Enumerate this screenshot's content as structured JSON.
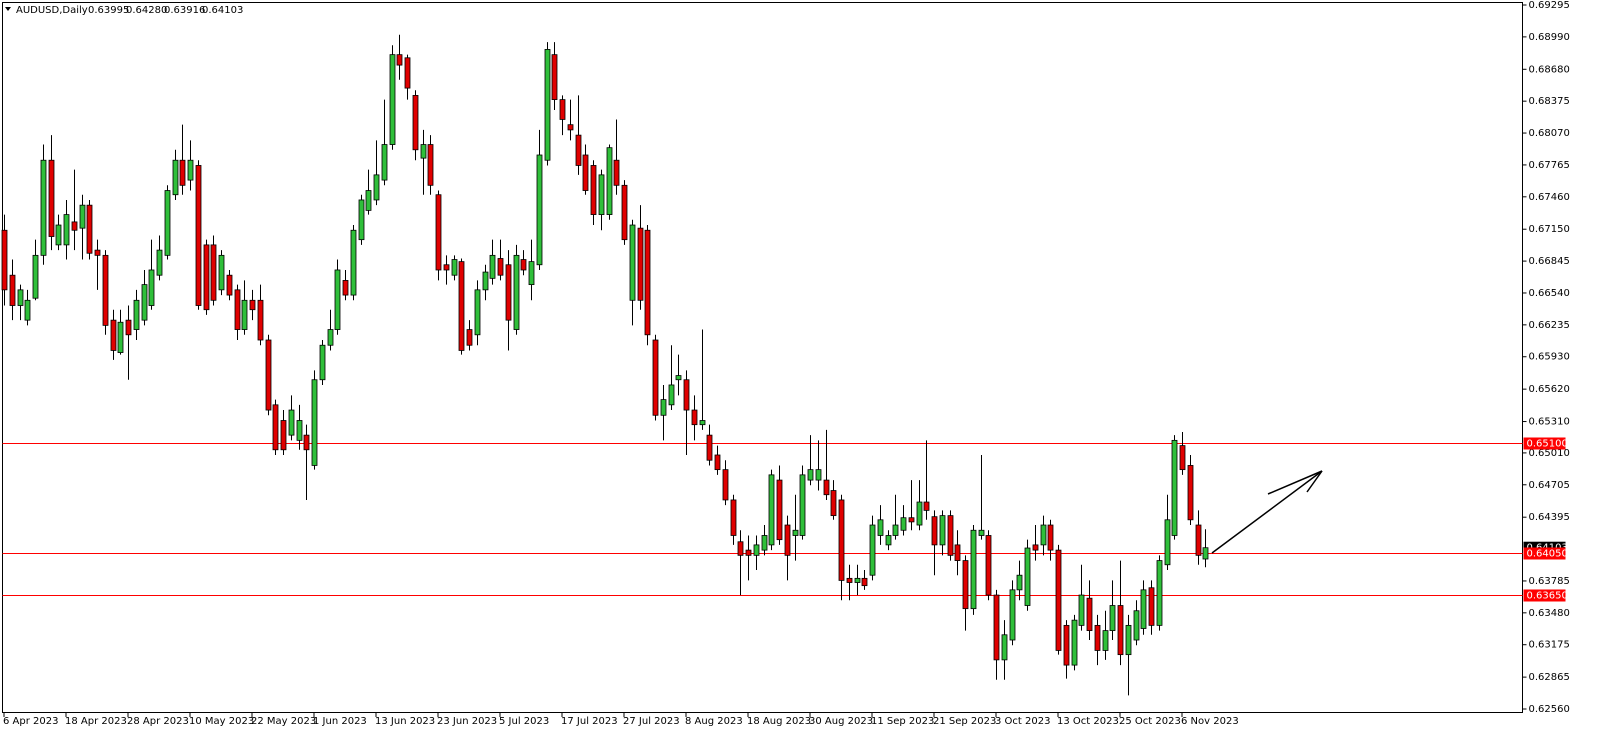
{
  "chart_data": {
    "type": "candlestick",
    "symbol": "AUDUSD,Daily",
    "header_values": [
      "0.63995",
      "0.64280",
      "0.63916",
      "0.64103"
    ],
    "categories": [
      "6 Apr 2023",
      null,
      null,
      null,
      null,
      null,
      null,
      null,
      "18 Apr 2023",
      null,
      null,
      null,
      null,
      null,
      null,
      null,
      "28 Apr 2023",
      null,
      null,
      null,
      null,
      null,
      null,
      null,
      "10 May 2023",
      null,
      null,
      null,
      null,
      null,
      null,
      null,
      "22 May 2023",
      null,
      null,
      null,
      null,
      null,
      null,
      null,
      "1 Jun 2023",
      null,
      null,
      null,
      null,
      null,
      null,
      null,
      "13 Jun 2023",
      null,
      null,
      null,
      null,
      null,
      null,
      null,
      "23 Jun 2023",
      null,
      null,
      null,
      null,
      null,
      null,
      null,
      "5 Jul 2023",
      null,
      null,
      null,
      null,
      null,
      null,
      null,
      "17 Jul 2023",
      null,
      null,
      null,
      null,
      null,
      null,
      null,
      "27 Jul 2023",
      null,
      null,
      null,
      null,
      null,
      null,
      null,
      "8 Aug 2023",
      null,
      null,
      null,
      null,
      null,
      null,
      null,
      "18 Aug 2023",
      null,
      null,
      null,
      null,
      null,
      null,
      null,
      "30 Aug 2023",
      null,
      null,
      null,
      null,
      null,
      null,
      null,
      "11 Sep 2023",
      null,
      null,
      null,
      null,
      null,
      null,
      null,
      "21 Sep 2023",
      null,
      null,
      null,
      null,
      null,
      null,
      null,
      "3 Oct 2023",
      null,
      null,
      null,
      null,
      null,
      null,
      null,
      "13 Oct 2023",
      null,
      null,
      null,
      null,
      null,
      null,
      null,
      "25 Oct 2023",
      null,
      null,
      null,
      null,
      null,
      null,
      null,
      "6 Nov 2023",
      null,
      null,
      null
    ],
    "open": [
      0.6714,
      0.6671,
      0.6642,
      0.6628,
      0.6649,
      0.669,
      0.6781,
      0.67,
      0.67,
      0.6722,
      0.6716,
      0.6738,
      0.6695,
      0.669,
      0.6628,
      0.6597,
      0.6628,
      0.6619,
      0.6628,
      0.6642,
      0.6671,
      0.669,
      0.6748,
      0.6781,
      0.6762,
      0.6776,
      0.67,
      0.67,
      0.6657,
      0.6671,
      0.6657,
      0.6619,
      0.6647,
      0.6647,
      0.6609,
      0.6547,
      0.6532,
      0.6518,
      0.6513,
      0.6518,
      0.6489,
      0.6571,
      0.6604,
      0.6619,
      0.6666,
      0.6652,
      0.6705,
      0.6733,
      0.6743,
      0.6762,
      0.6796,
      0.6882,
      0.6879,
      0.6843,
      0.6783,
      0.6796,
      0.6748,
      0.6681,
      0.6671,
      0.6684,
      0.6619,
      0.6614,
      0.6657,
      0.6668,
      0.6687,
      0.6681,
      0.6619,
      0.6686,
      0.6662,
      0.6681,
      0.6781,
      0.6882,
      0.6839,
      0.6815,
      0.6805,
      0.6786,
      0.6776,
      0.6729,
      0.6729,
      0.6781,
      0.6757,
      0.6647,
      0.6716,
      0.6714,
      0.6609,
      0.6537,
      0.6547,
      0.6571,
      0.6571,
      0.6542,
      0.6528,
      0.6518,
      0.6499,
      0.6485,
      0.6456,
      0.6416,
      0.6408,
      0.6403,
      0.6408,
      0.6413,
      0.6475,
      0.6432,
      0.6422,
      0.6422,
      0.6475,
      0.6475,
      0.6475,
      0.6465,
      0.6456,
      0.6381,
      0.6377,
      0.6381,
      0.6384,
      0.6422,
      0.6413,
      0.6422,
      0.6427,
      0.6439,
      0.6432,
      0.6454,
      0.644,
      0.6413,
      0.6441,
      0.6413,
      0.6398,
      0.6352,
      0.6422,
      0.6422,
      0.6365,
      0.6303,
      0.6322,
      0.637,
      0.6355,
      0.6413,
      0.6413,
      0.6432,
      0.6408,
      0.6336,
      0.6298,
      0.6336,
      0.6362,
      0.6336,
      0.6312,
      0.6331,
      0.6355,
      0.6308,
      0.6322,
      0.6333,
      0.6372,
      0.6336,
      0.6394,
      0.6422,
      0.6508,
      0.6489,
      0.6432,
      0.63995
    ],
    "high": [
      0.6729,
      0.6686,
      0.6662,
      0.6657,
      0.6705,
      0.6796,
      0.6805,
      0.6729,
      0.6743,
      0.6772,
      0.6748,
      0.6743,
      0.6705,
      0.6695,
      0.6638,
      0.6638,
      0.6642,
      0.6657,
      0.6676,
      0.6705,
      0.6709,
      0.6757,
      0.6791,
      0.6815,
      0.68,
      0.6781,
      0.6705,
      0.6709,
      0.6695,
      0.6676,
      0.6662,
      0.6666,
      0.6657,
      0.6662,
      0.6614,
      0.6552,
      0.6542,
      0.6556,
      0.6547,
      0.6528,
      0.658,
      0.6609,
      0.6638,
      0.6686,
      0.6676,
      0.6719,
      0.6748,
      0.6772,
      0.68,
      0.6839,
      0.6891,
      0.6901,
      0.6882,
      0.6848,
      0.681,
      0.6805,
      0.6752,
      0.669,
      0.669,
      0.6687,
      0.6628,
      0.6666,
      0.6681,
      0.6705,
      0.6705,
      0.6695,
      0.67,
      0.6695,
      0.6705,
      0.681,
      0.6894,
      0.6894,
      0.6843,
      0.6839,
      0.6843,
      0.6796,
      0.6781,
      0.6772,
      0.6796,
      0.682,
      0.6762,
      0.6724,
      0.6738,
      0.6719,
      0.6614,
      0.6566,
      0.6604,
      0.6595,
      0.658,
      0.6556,
      0.6619,
      0.6528,
      0.6508,
      0.6494,
      0.6461,
      0.6427,
      0.6422,
      0.6422,
      0.6432,
      0.6485,
      0.6489,
      0.6441,
      0.6461,
      0.6489,
      0.6518,
      0.6513,
      0.6523,
      0.6475,
      0.6461,
      0.6394,
      0.6394,
      0.6389,
      0.6441,
      0.6451,
      0.6427,
      0.6461,
      0.6451,
      0.6475,
      0.6475,
      0.6513,
      0.6446,
      0.6446,
      0.6446,
      0.6427,
      0.6403,
      0.6432,
      0.6499,
      0.6427,
      0.637,
      0.6341,
      0.6379,
      0.6398,
      0.6418,
      0.6432,
      0.6441,
      0.6437,
      0.6413,
      0.6341,
      0.6346,
      0.6394,
      0.6379,
      0.6346,
      0.635,
      0.6379,
      0.6398,
      0.6346,
      0.636,
      0.6379,
      0.6379,
      0.6403,
      0.6461,
      0.6518,
      0.6521,
      0.6499,
      0.6446,
      0.6428
    ],
    "low": [
      0.6642,
      0.6628,
      0.6628,
      0.6623,
      0.6647,
      0.6681,
      0.6695,
      0.6695,
      0.6686,
      0.6695,
      0.6686,
      0.6686,
      0.6657,
      0.6614,
      0.659,
      0.6595,
      0.6571,
      0.6609,
      0.6623,
      0.6638,
      0.6666,
      0.6686,
      0.6743,
      0.6748,
      0.6752,
      0.6638,
      0.6633,
      0.6642,
      0.6652,
      0.6647,
      0.6609,
      0.6614,
      0.6628,
      0.6604,
      0.6537,
      0.6499,
      0.6499,
      0.6513,
      0.6504,
      0.6456,
      0.6485,
      0.6566,
      0.6599,
      0.6614,
      0.6647,
      0.6647,
      0.67,
      0.6729,
      0.6738,
      0.6757,
      0.6791,
      0.6858,
      0.6839,
      0.6781,
      0.6748,
      0.6748,
      0.6666,
      0.6662,
      0.6666,
      0.6595,
      0.6599,
      0.6604,
      0.6647,
      0.6662,
      0.6666,
      0.6599,
      0.6614,
      0.6671,
      0.6647,
      0.6676,
      0.6776,
      0.6829,
      0.6805,
      0.68,
      0.6767,
      0.6748,
      0.6719,
      0.6714,
      0.6724,
      0.6748,
      0.67,
      0.6623,
      0.6638,
      0.6604,
      0.6532,
      0.6513,
      0.6542,
      0.6556,
      0.6499,
      0.6513,
      0.6523,
      0.6489,
      0.648,
      0.6451,
      0.6413,
      0.6365,
      0.6379,
      0.6389,
      0.6403,
      0.6408,
      0.6413,
      0.6379,
      0.6398,
      0.6418,
      0.647,
      0.6465,
      0.6456,
      0.6437,
      0.636,
      0.636,
      0.6365,
      0.637,
      0.6379,
      0.6413,
      0.6408,
      0.6418,
      0.6422,
      0.6427,
      0.6427,
      0.6437,
      0.6384,
      0.6403,
      0.6398,
      0.6384,
      0.6331,
      0.6346,
      0.6418,
      0.636,
      0.6284,
      0.6284,
      0.6317,
      0.636,
      0.635,
      0.6398,
      0.6403,
      0.6398,
      0.6308,
      0.6285,
      0.6293,
      0.6331,
      0.6322,
      0.6298,
      0.6303,
      0.6322,
      0.6298,
      0.6269,
      0.6317,
      0.6327,
      0.6327,
      0.6331,
      0.6389,
      0.6418,
      0.648,
      0.6432,
      0.6394,
      0.63916
    ],
    "close": [
      0.6657,
      0.6642,
      0.6657,
      0.6647,
      0.669,
      0.6781,
      0.6708,
      0.6719,
      0.6729,
      0.6714,
      0.6738,
      0.6692,
      0.669,
      0.6623,
      0.6599,
      0.6626,
      0.6614,
      0.6647,
      0.6662,
      0.6676,
      0.6695,
      0.6752,
      0.6781,
      0.6757,
      0.6781,
      0.6642,
      0.6638,
      0.6647,
      0.669,
      0.6652,
      0.6619,
      0.6647,
      0.6638,
      0.6609,
      0.6542,
      0.6504,
      0.6504,
      0.6542,
      0.6532,
      0.6504,
      0.6571,
      0.6604,
      0.6619,
      0.6676,
      0.6652,
      0.6714,
      0.6743,
      0.6752,
      0.6767,
      0.6796,
      0.6882,
      0.6872,
      0.685,
      0.6791,
      0.6796,
      0.6757,
      0.6676,
      0.6676,
      0.6686,
      0.6599,
      0.6604,
      0.6657,
      0.6674,
      0.669,
      0.6671,
      0.6628,
      0.669,
      0.6676,
      0.6684,
      0.6786,
      0.6887,
      0.6839,
      0.682,
      0.681,
      0.6776,
      0.6752,
      0.6729,
      0.6767,
      0.6793,
      0.6757,
      0.6705,
      0.6719,
      0.6647,
      0.6614,
      0.6537,
      0.6552,
      0.6566,
      0.6575,
      0.6542,
      0.6528,
      0.6532,
      0.6494,
      0.6485,
      0.6456,
      0.6422,
      0.6403,
      0.6403,
      0.6413,
      0.6422,
      0.648,
      0.6418,
      0.6403,
      0.6427,
      0.648,
      0.6485,
      0.6485,
      0.6461,
      0.6441,
      0.6379,
      0.6377,
      0.6381,
      0.6374,
      0.6432,
      0.6437,
      0.6422,
      0.6432,
      0.6439,
      0.6435,
      0.6454,
      0.6446,
      0.6413,
      0.6441,
      0.6403,
      0.6398,
      0.6352,
      0.6427,
      0.6427,
      0.6365,
      0.6303,
      0.6327,
      0.637,
      0.6384,
      0.641,
      0.6408,
      0.6432,
      0.6408,
      0.6312,
      0.6298,
      0.6341,
      0.6365,
      0.6331,
      0.6312,
      0.6331,
      0.6355,
      0.6308,
      0.6336,
      0.635,
      0.637,
      0.6336,
      0.6398,
      0.6437,
      0.6513,
      0.6485,
      0.6437,
      0.6403,
      0.64103
    ],
    "up_color": "#2fbf3a",
    "down_color": "#e00000",
    "ylim": [
      0.6256,
      0.69295
    ],
    "yticks": [
      0.69295,
      {
        "value": 0.6899,
        "label": "0.68990"
      },
      {
        "value": 0.6868,
        "label": "0.68680"
      },
      0.68375,
      {
        "value": 0.6807,
        "label": "0.68070"
      },
      0.67765,
      {
        "value": 0.6746,
        "label": "0.67460"
      },
      {
        "value": 0.6715,
        "label": "0.67150"
      },
      0.66845,
      {
        "value": 0.6654,
        "label": "0.66540"
      },
      0.66235,
      {
        "value": 0.6593,
        "label": "0.65930"
      },
      {
        "value": 0.6562,
        "label": "0.65620"
      },
      {
        "value": 0.6531,
        "label": "0.65310"
      },
      {
        "value": 0.6501,
        "label": "0.65010"
      },
      0.64705,
      0.64395,
      0.63785,
      {
        "value": 0.6348,
        "label": "0.63480"
      },
      0.63175,
      0.62865,
      {
        "value": 0.6256,
        "label": "0.62560"
      }
    ],
    "levels": [
      {
        "value": 0.651,
        "label": "0.65100"
      },
      {
        "value": 0.6405,
        "label": "0.64050"
      },
      {
        "value": 0.6365,
        "label": "0.63650"
      }
    ],
    "level_color": "#ff0000",
    "current_price": {
      "value": 0.64103,
      "label": "0.64103"
    }
  }
}
